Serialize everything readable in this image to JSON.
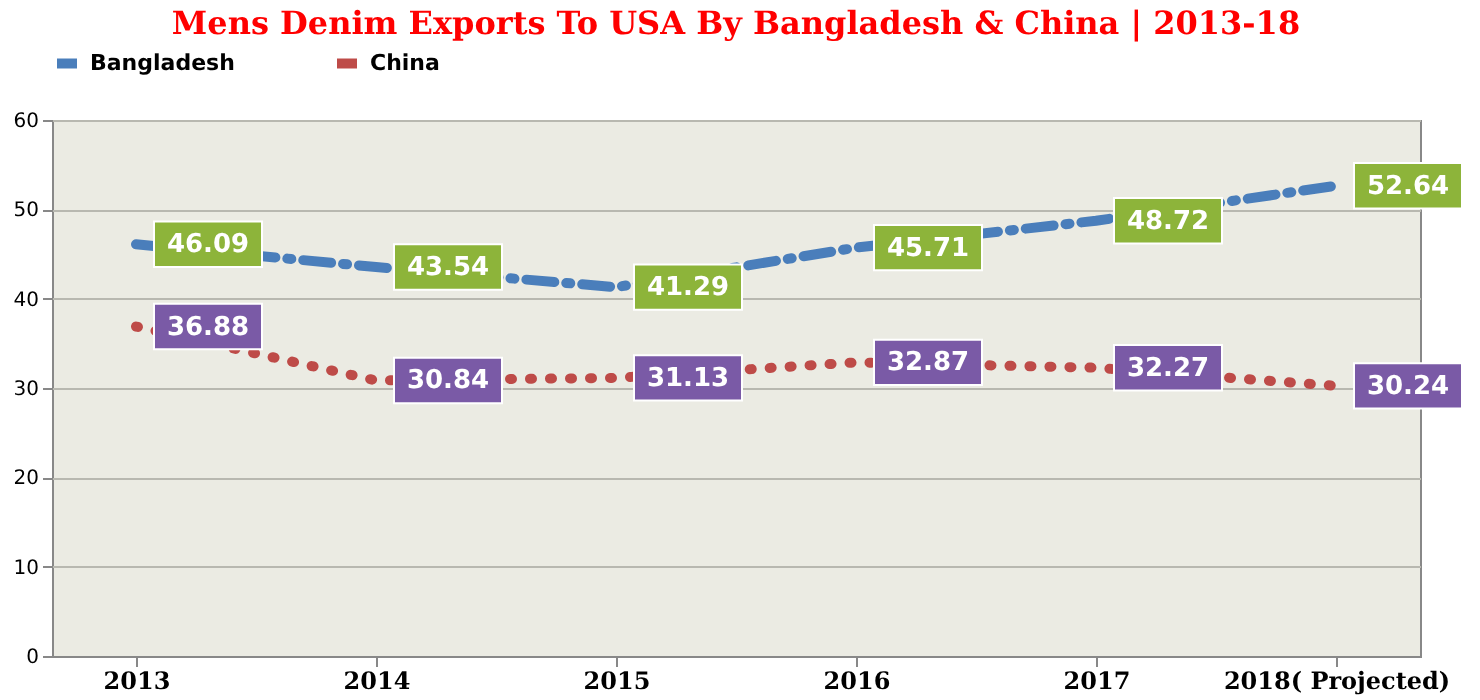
{
  "chart_data": {
    "type": "line",
    "title": "Mens Denim Exports To USA By Bangladesh & China | 2013-18",
    "categories": [
      "2013",
      "2014",
      "2015",
      "2016",
      "2017",
      "2018( Projected)"
    ],
    "series": [
      {
        "name": "Bangladesh",
        "color": "#4a7ebb",
        "line_style": "dashed",
        "values": [
          46.09,
          43.54,
          41.29,
          45.71,
          48.72,
          52.64
        ]
      },
      {
        "name": "China",
        "color": "#be4b48",
        "line_style": "dotted",
        "values": [
          36.88,
          30.84,
          31.13,
          32.87,
          32.27,
          30.24
        ]
      }
    ],
    "ylim": [
      0,
      60
    ],
    "yticks": [
      0,
      10,
      20,
      30,
      40,
      50,
      60
    ],
    "grid": "y",
    "legend": "top",
    "data_labels": true,
    "marker": "none"
  }
}
